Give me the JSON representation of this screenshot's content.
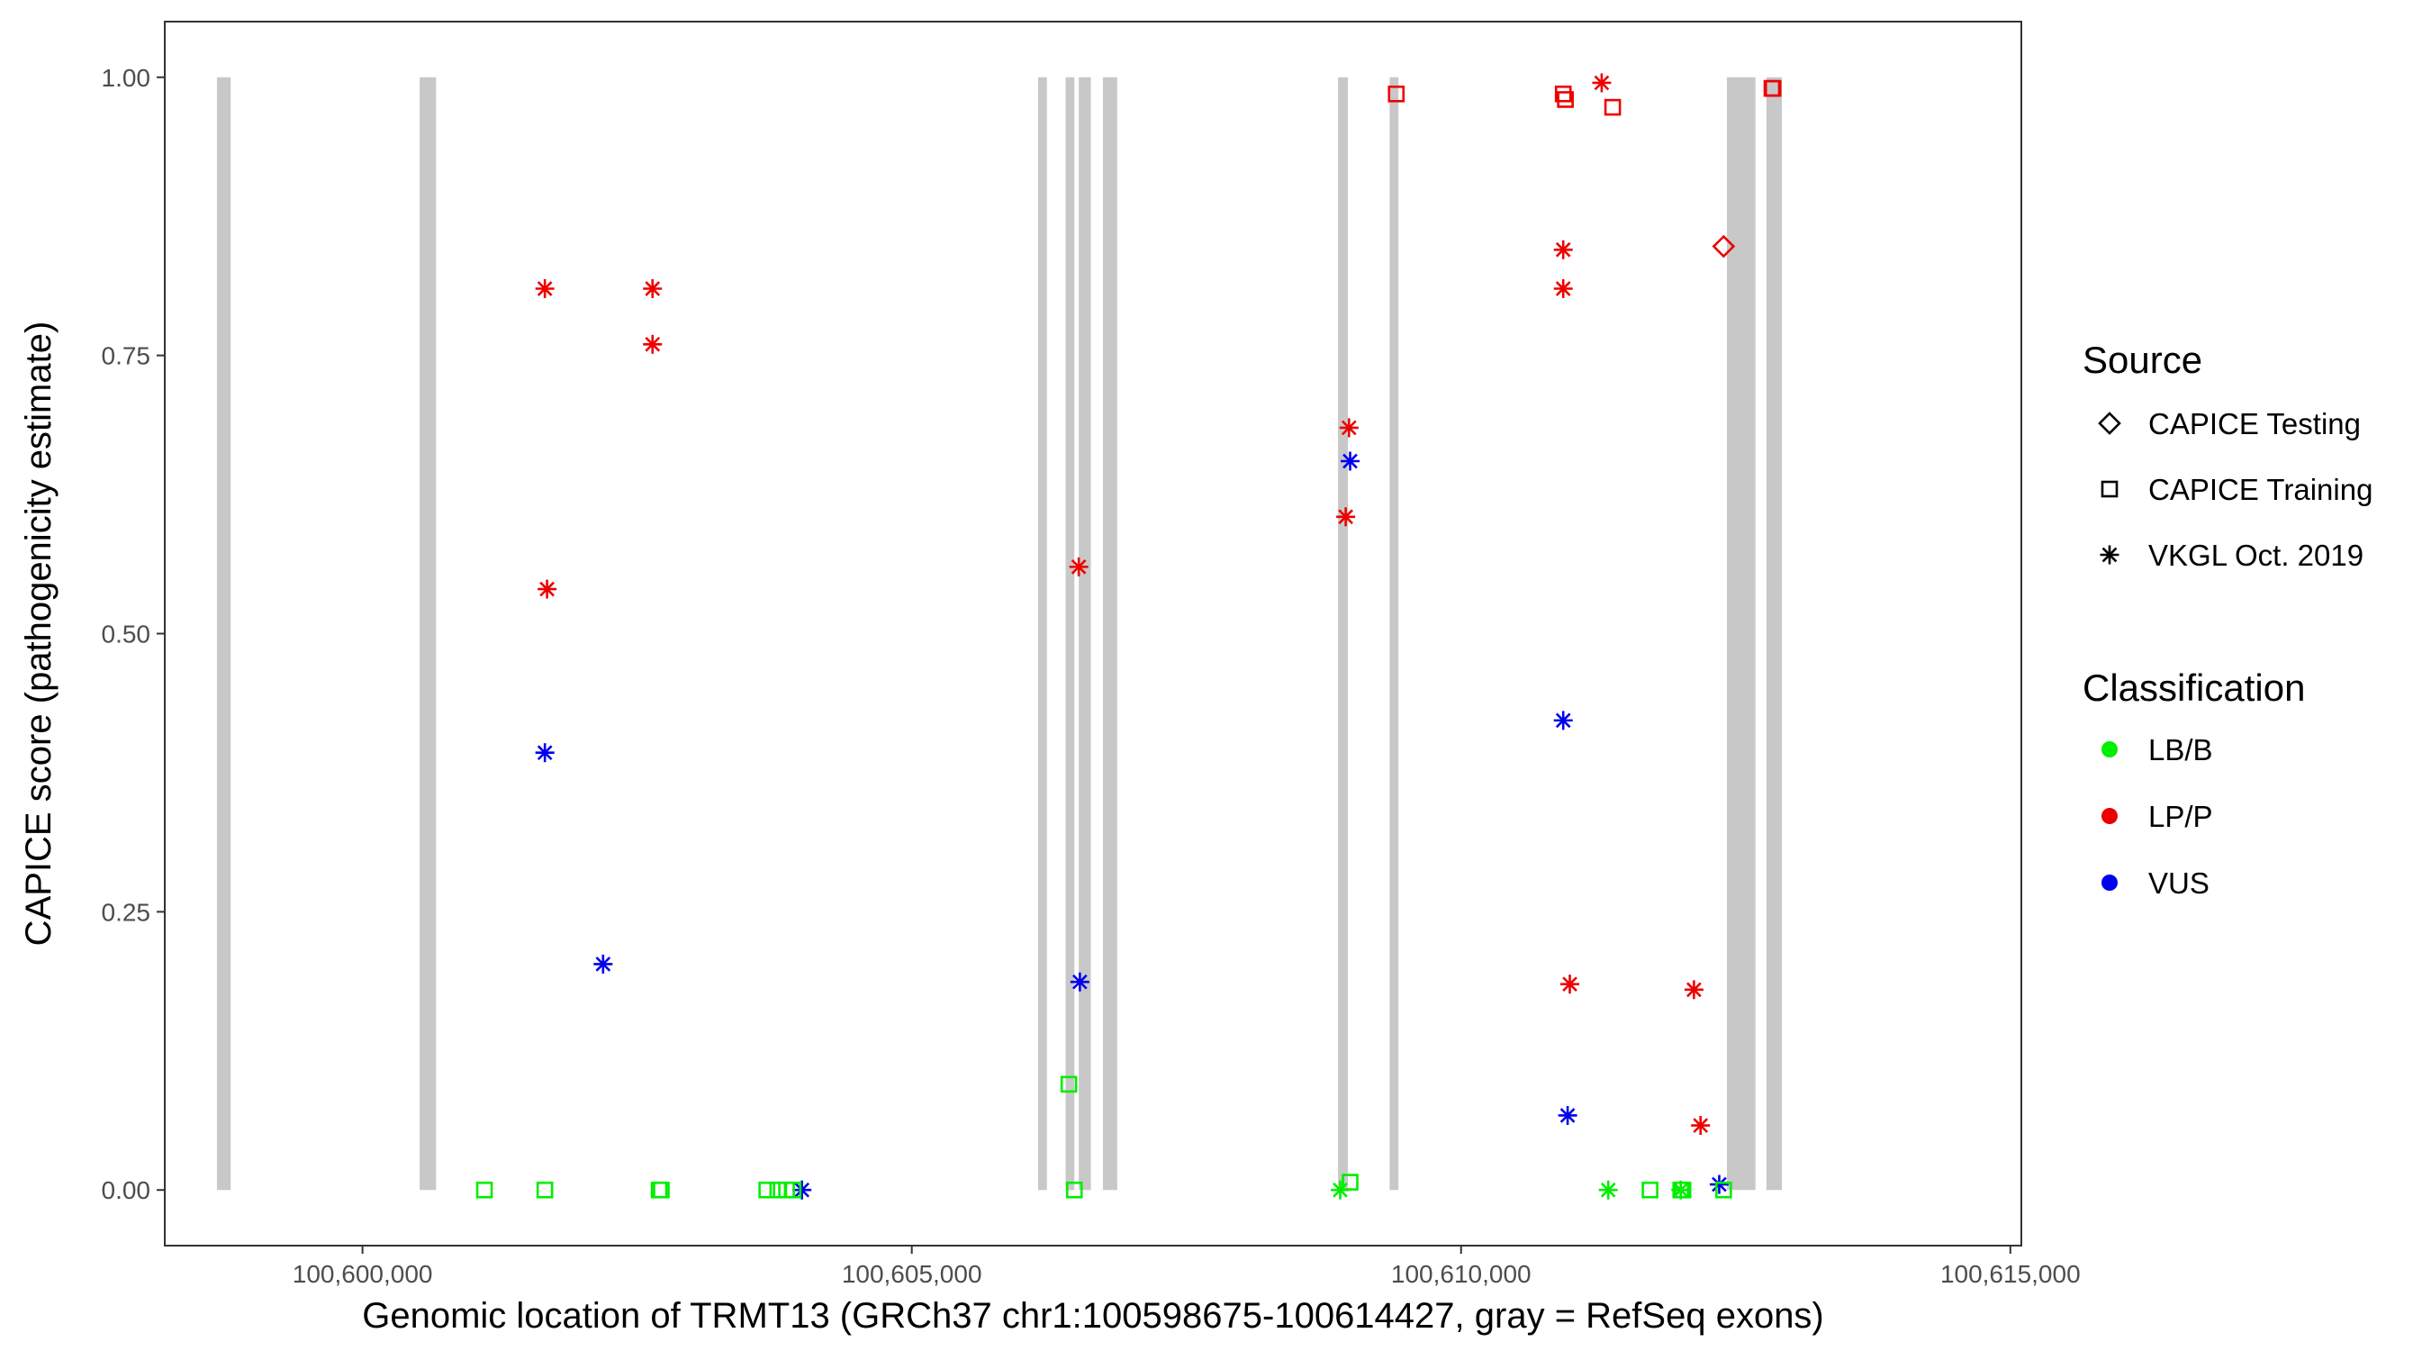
{
  "chart_data": {
    "type": "scatter",
    "title": "",
    "xlabel": "Genomic location of TRMT13 (GRCh37 chr1:100598675-100614427, gray = RefSeq exons)",
    "ylabel": "CAPICE score (pathogenicity estimate)",
    "xlim": [
      100598200,
      100615100
    ],
    "ylim": [
      -0.05,
      1.05
    ],
    "x_ticks": [
      100600000,
      100605000,
      100610000,
      100615000
    ],
    "x_tick_labels": [
      "100,600,000",
      "100,605,000",
      "100,610,000",
      "100,615,000"
    ],
    "y_ticks": [
      0,
      0.25,
      0.5,
      0.75,
      1
    ],
    "y_tick_labels": [
      "0.00",
      "0.25",
      "0.50",
      "0.75",
      "1.00"
    ],
    "grid": false,
    "exon_color": "#c8c8c8",
    "exons": [
      [
        100598675,
        100598800
      ],
      [
        100600520,
        100600670
      ],
      [
        100606150,
        100606230
      ],
      [
        100606400,
        100606480
      ],
      [
        100606520,
        100606630
      ],
      [
        100606740,
        100606870
      ],
      [
        100608880,
        100608970
      ],
      [
        100609350,
        100609430
      ],
      [
        100612420,
        100612680
      ],
      [
        100612780,
        100612920
      ]
    ],
    "legend": {
      "placement": "right",
      "source_title": "Source",
      "source_items": [
        {
          "label": "CAPICE Testing",
          "shape": "diamond"
        },
        {
          "label": "CAPICE Training",
          "shape": "square"
        },
        {
          "label": "VKGL Oct. 2019",
          "shape": "asterisk"
        }
      ],
      "class_title": "Classification",
      "class_items": [
        {
          "label": "LB/B",
          "color": "#00ee00"
        },
        {
          "label": "LP/P",
          "color": "#ee0000"
        },
        {
          "label": "VUS",
          "color": "#0000ee"
        }
      ]
    },
    "series": [
      {
        "source": "VKGL Oct. 2019",
        "classification": "LP/P",
        "shape": "asterisk",
        "color": "#ee0000",
        "x": [
          100601660,
          100601680,
          100602640,
          100602640,
          100606520,
          100608950,
          100608980,
          100610930,
          100610930,
          100610990,
          100611280,
          100612120,
          100612180
        ],
        "y": [
          0.81,
          0.54,
          0.81,
          0.76,
          0.56,
          0.605,
          0.685,
          0.845,
          0.81,
          0.185,
          0.995,
          0.18,
          0.058
        ]
      },
      {
        "source": "VKGL Oct. 2019",
        "classification": "VUS",
        "shape": "asterisk",
        "color": "#0000ee",
        "x": [
          100601660,
          100602190,
          100604000,
          100606530,
          100608990,
          100610930,
          100610970,
          100612350
        ],
        "y": [
          0.393,
          0.203,
          0.0,
          0.187,
          0.655,
          0.422,
          0.067,
          0.005
        ]
      },
      {
        "source": "VKGL Oct. 2019",
        "classification": "LB/B",
        "shape": "asterisk",
        "color": "#00ee00",
        "x": [
          100608900,
          100611340,
          100612000
        ],
        "y": [
          0.0,
          0.0,
          0.0
        ]
      },
      {
        "source": "CAPICE Training",
        "classification": "LP/P",
        "shape": "square",
        "color": "#ee0000",
        "x": [
          100609410,
          100610930,
          100610950,
          100611380,
          100612830,
          100612840
        ],
        "y": [
          0.985,
          0.985,
          0.98,
          0.973,
          0.99,
          0.99
        ]
      },
      {
        "source": "CAPICE Training",
        "classification": "LB/B",
        "shape": "square",
        "color": "#00ee00",
        "x": [
          100601110,
          100601660,
          100602700,
          100602720,
          100603680,
          100603780,
          100603860,
          100603920,
          100606430,
          100606480,
          100608990,
          100611720,
          100612000,
          100612020,
          100612390
        ],
        "y": [
          0.0,
          0.0,
          0.0,
          0.0,
          0.0,
          0.0,
          0.0,
          0.0,
          0.095,
          0.0,
          0.007,
          0.0,
          0.0,
          0.0,
          0.0
        ]
      },
      {
        "source": "CAPICE Testing",
        "classification": "LP/P",
        "shape": "diamond",
        "color": "#ee0000",
        "x": [
          100612390
        ],
        "y": [
          0.848
        ]
      }
    ]
  }
}
